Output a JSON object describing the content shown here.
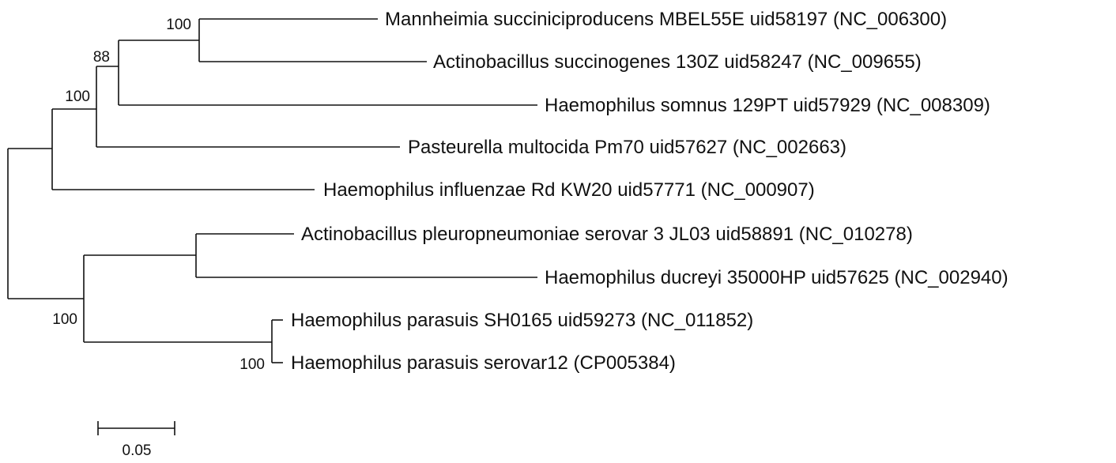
{
  "taxa": [
    "Mannheimia succiniciproducens MBEL55E uid58197 (NC_006300)",
    "Actinobacillus succinogenes 130Z uid58247 (NC_009655)",
    "Haemophilus somnus 129PT uid57929 (NC_008309)",
    "Pasteurella multocida Pm70 uid57627 (NC_002663)",
    "Haemophilus influenzae Rd KW20 uid57771 (NC_000907)",
    "Actinobacillus pleuropneumoniae serovar 3 JL03 uid58891 (NC_010278)",
    "Haemophilus ducreyi 35000HP uid57625 (NC_002940)",
    "Haemophilus parasuis SH0165 uid59273 (NC_011852)",
    "Haemophilus parasuis serovar12 (CP005384)"
  ],
  "bootstrap": {
    "mannheimia_actinobacillus": "100",
    "with_somnus": "88",
    "with_pasteurella": "100",
    "lower_clade": "100",
    "parasuis_pair": "100"
  },
  "scale_bar": {
    "label": "0.05"
  }
}
